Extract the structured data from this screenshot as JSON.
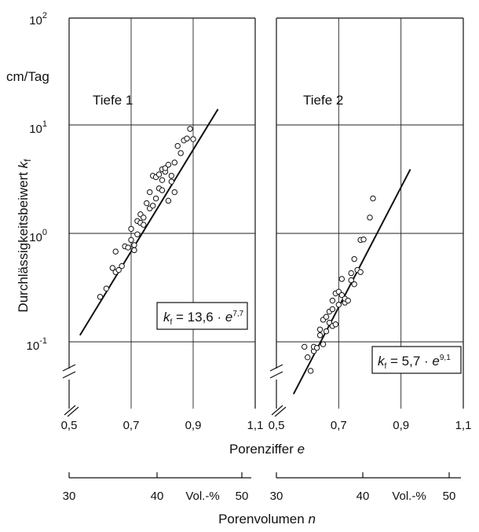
{
  "y_unit": "cm/Tag",
  "ylabel_text": "Durchlässigkeitsbeiwert ",
  "ylabel_symbol": "k",
  "ylabel_sub": "f",
  "xlabel_text": "Porenziffer ",
  "xlabel_symbol": "e",
  "n_axis_label_text": "Porenvolumen ",
  "n_axis_label_symbol": "n",
  "y_ticks": [
    {
      "base": "10",
      "exp": "2",
      "value": 100
    },
    {
      "base": "10",
      "exp": "1",
      "value": 10
    },
    {
      "base": "10",
      "exp": "0",
      "value": 1
    },
    {
      "base": "10",
      "exp": "-1",
      "value": 0.1
    }
  ],
  "chart_data": [
    {
      "type": "scatter",
      "panel_title": "Tiefe 1",
      "x_ticks": [
        "0,5",
        "0,7",
        "0,9",
        "1,1"
      ],
      "xlim": [
        0.5,
        1.1
      ],
      "ylim": [
        0.03,
        100
      ],
      "y_scale": "log",
      "grid": true,
      "n_ticks": [
        "30",
        "40",
        "50"
      ],
      "n_unit": "Vol.-%",
      "equation": {
        "k": "k",
        "k_sub": "f",
        "text": " = 13,6 · ",
        "e": "e",
        "exp": "7,7"
      },
      "fit_line": [
        [
          0.535,
          0.115
        ],
        [
          0.98,
          14
        ]
      ],
      "points": [
        [
          0.6,
          0.26
        ],
        [
          0.62,
          0.31
        ],
        [
          0.64,
          0.48
        ],
        [
          0.65,
          0.44
        ],
        [
          0.65,
          0.68
        ],
        [
          0.66,
          0.46
        ],
        [
          0.67,
          0.5
        ],
        [
          0.68,
          0.76
        ],
        [
          0.69,
          0.74
        ],
        [
          0.7,
          0.87
        ],
        [
          0.7,
          1.1
        ],
        [
          0.71,
          0.78
        ],
        [
          0.71,
          0.7
        ],
        [
          0.72,
          1.3
        ],
        [
          0.72,
          0.98
        ],
        [
          0.73,
          1.5
        ],
        [
          0.73,
          1.25
        ],
        [
          0.74,
          1.4
        ],
        [
          0.74,
          1.2
        ],
        [
          0.75,
          1.9
        ],
        [
          0.76,
          2.4
        ],
        [
          0.76,
          1.7
        ],
        [
          0.77,
          1.8
        ],
        [
          0.77,
          3.4
        ],
        [
          0.78,
          2.1
        ],
        [
          0.78,
          3.3
        ],
        [
          0.79,
          2.6
        ],
        [
          0.79,
          3.5
        ],
        [
          0.8,
          3.1
        ],
        [
          0.8,
          2.5
        ],
        [
          0.8,
          3.9
        ],
        [
          0.81,
          3.7
        ],
        [
          0.81,
          4.0
        ],
        [
          0.82,
          4.3
        ],
        [
          0.83,
          3.4
        ],
        [
          0.83,
          3.0
        ],
        [
          0.84,
          4.5
        ],
        [
          0.85,
          6.4
        ],
        [
          0.86,
          5.5
        ],
        [
          0.87,
          7.2
        ],
        [
          0.88,
          7.5
        ],
        [
          0.89,
          9.2
        ],
        [
          0.9,
          7.4
        ],
        [
          0.82,
          2.0
        ],
        [
          0.84,
          2.4
        ]
      ]
    },
    {
      "type": "scatter",
      "panel_title": "Tiefe 2",
      "x_ticks": [
        "0,5",
        "0,7",
        "0,9",
        "1,1"
      ],
      "xlim": [
        0.5,
        1.1
      ],
      "ylim": [
        0.03,
        100
      ],
      "y_scale": "log",
      "grid": true,
      "n_ticks": [
        "30",
        "40",
        "50"
      ],
      "n_unit": "Vol.-%",
      "equation": {
        "k": "k",
        "k_sub": "f",
        "text": " = 5,7 · ",
        "e": "e",
        "exp": "9,1"
      },
      "fit_line": [
        [
          0.555,
          0.033
        ],
        [
          0.93,
          3.9
        ]
      ],
      "points": [
        [
          0.59,
          0.09
        ],
        [
          0.6,
          0.072
        ],
        [
          0.61,
          0.054
        ],
        [
          0.62,
          0.082
        ],
        [
          0.62,
          0.09
        ],
        [
          0.63,
          0.088
        ],
        [
          0.64,
          0.115
        ],
        [
          0.64,
          0.13
        ],
        [
          0.65,
          0.095
        ],
        [
          0.65,
          0.16
        ],
        [
          0.66,
          0.125
        ],
        [
          0.66,
          0.17
        ],
        [
          0.67,
          0.15
        ],
        [
          0.67,
          0.19
        ],
        [
          0.68,
          0.14
        ],
        [
          0.68,
          0.2
        ],
        [
          0.68,
          0.24
        ],
        [
          0.69,
          0.28
        ],
        [
          0.69,
          0.145
        ],
        [
          0.7,
          0.22
        ],
        [
          0.7,
          0.29
        ],
        [
          0.71,
          0.38
        ],
        [
          0.71,
          0.27
        ],
        [
          0.72,
          0.23
        ],
        [
          0.72,
          0.25
        ],
        [
          0.73,
          0.24
        ],
        [
          0.74,
          0.37
        ],
        [
          0.74,
          0.43
        ],
        [
          0.75,
          0.34
        ],
        [
          0.75,
          0.58
        ],
        [
          0.76,
          0.46
        ],
        [
          0.77,
          0.44
        ],
        [
          0.77,
          0.87
        ],
        [
          0.78,
          0.88
        ],
        [
          0.8,
          1.4
        ],
        [
          0.81,
          2.1
        ]
      ]
    }
  ]
}
